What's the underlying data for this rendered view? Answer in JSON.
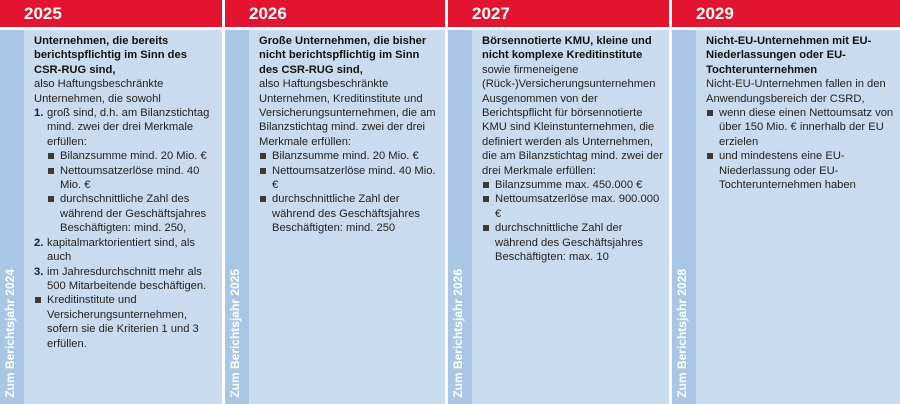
{
  "columns": [
    {
      "year": "2025",
      "side_label": "Zum Berichtsjahr 2024",
      "lead": "Unternehmen, die bereits berichtspflichtig im Sinn des CSR-RUG sind,",
      "intro": "also Haftungsbeschränkte Unternehmen, die sowohl",
      "numbered": [
        {
          "n": "1.",
          "text": "groß sind, d.h. am Bilanzstichtag mind. zwei der drei Merkmale erfüllen:",
          "bullets": [
            "Bilanzsumme mind. 20 Mio. €",
            "Nettoumsatzerlöse mind. 40 Mio. €",
            "durchschnittliche Zahl des während der Geschäftsjahres Beschäftigten: mind. 250,"
          ]
        },
        {
          "n": "2.",
          "text": "kapitalmarktorientiert sind, als auch",
          "bullets": []
        },
        {
          "n": "3.",
          "text": "im Jahresdurchschnitt mehr als 500 Mitarbeitende beschäftigen.",
          "bullets": []
        }
      ],
      "trailing_bullets": [
        "Kreditinstitute und Versicherungsunternehmen, sofern sie die Kriterien 1 und 3 erfüllen."
      ]
    },
    {
      "year": "2026",
      "side_label": "Zum Berichtsjahr 2025",
      "lead": "Große Unternehmen, die bisher nicht berichtspflichtig im Sinn des CSR-RUG sind,",
      "intro": "also Haftungsbeschränkte Unternehmen, Kreditinstitute und Versicherungsunternehmen, die am Bilanzstichtag mind. zwei der drei Merkmale erfüllen:",
      "bullets": [
        "Bilanzsumme mind. 20 Mio. €",
        "Nettoumsatzerlöse mind. 40 Mio. €",
        "durchschnittliche Zahl der während des Geschäftsjahres Beschäftigten: mind. 250"
      ]
    },
    {
      "year": "2027",
      "side_label": "Zum Berichtsjahr 2026",
      "lead": "Börsennotierte KMU, kleine und nicht komplexe Kreditinstitute",
      "intro": "sowie firmeneigene (Rück-)Versicherungsunternehmen Ausgenommen von der Berichtspflicht für börsennotierte KMU sind Kleinstunternehmen, die definiert werden als Unternehmen, die am Bilanzstichtag mind. zwei der drei Merkmale erfüllen:",
      "bullets": [
        "Bilanzsumme max. 450.000 €",
        "Nettoumsatzerlöse max. 900.000 €",
        "durchschnittliche Zahl der während des Geschäftsjahres Beschäftigten:  max. 10"
      ]
    },
    {
      "year": "2029",
      "side_label": "Zum Berichtsjahr 2028",
      "lead": "Nicht-EU-Unternehmen mit EU-Niederlassungen oder EU-Tochterunternehmen",
      "intro": "Nicht-EU-Unternehmen fallen in den Anwendungsbereich der CSRD,",
      "bullets": [
        "wenn diese einen Nettoumsatz von über 150 Mio. € innerhalb der EU erzielen",
        "und mindestens eine EU-Niederlassung oder EU-Tochterunternehmen haben"
      ]
    }
  ]
}
